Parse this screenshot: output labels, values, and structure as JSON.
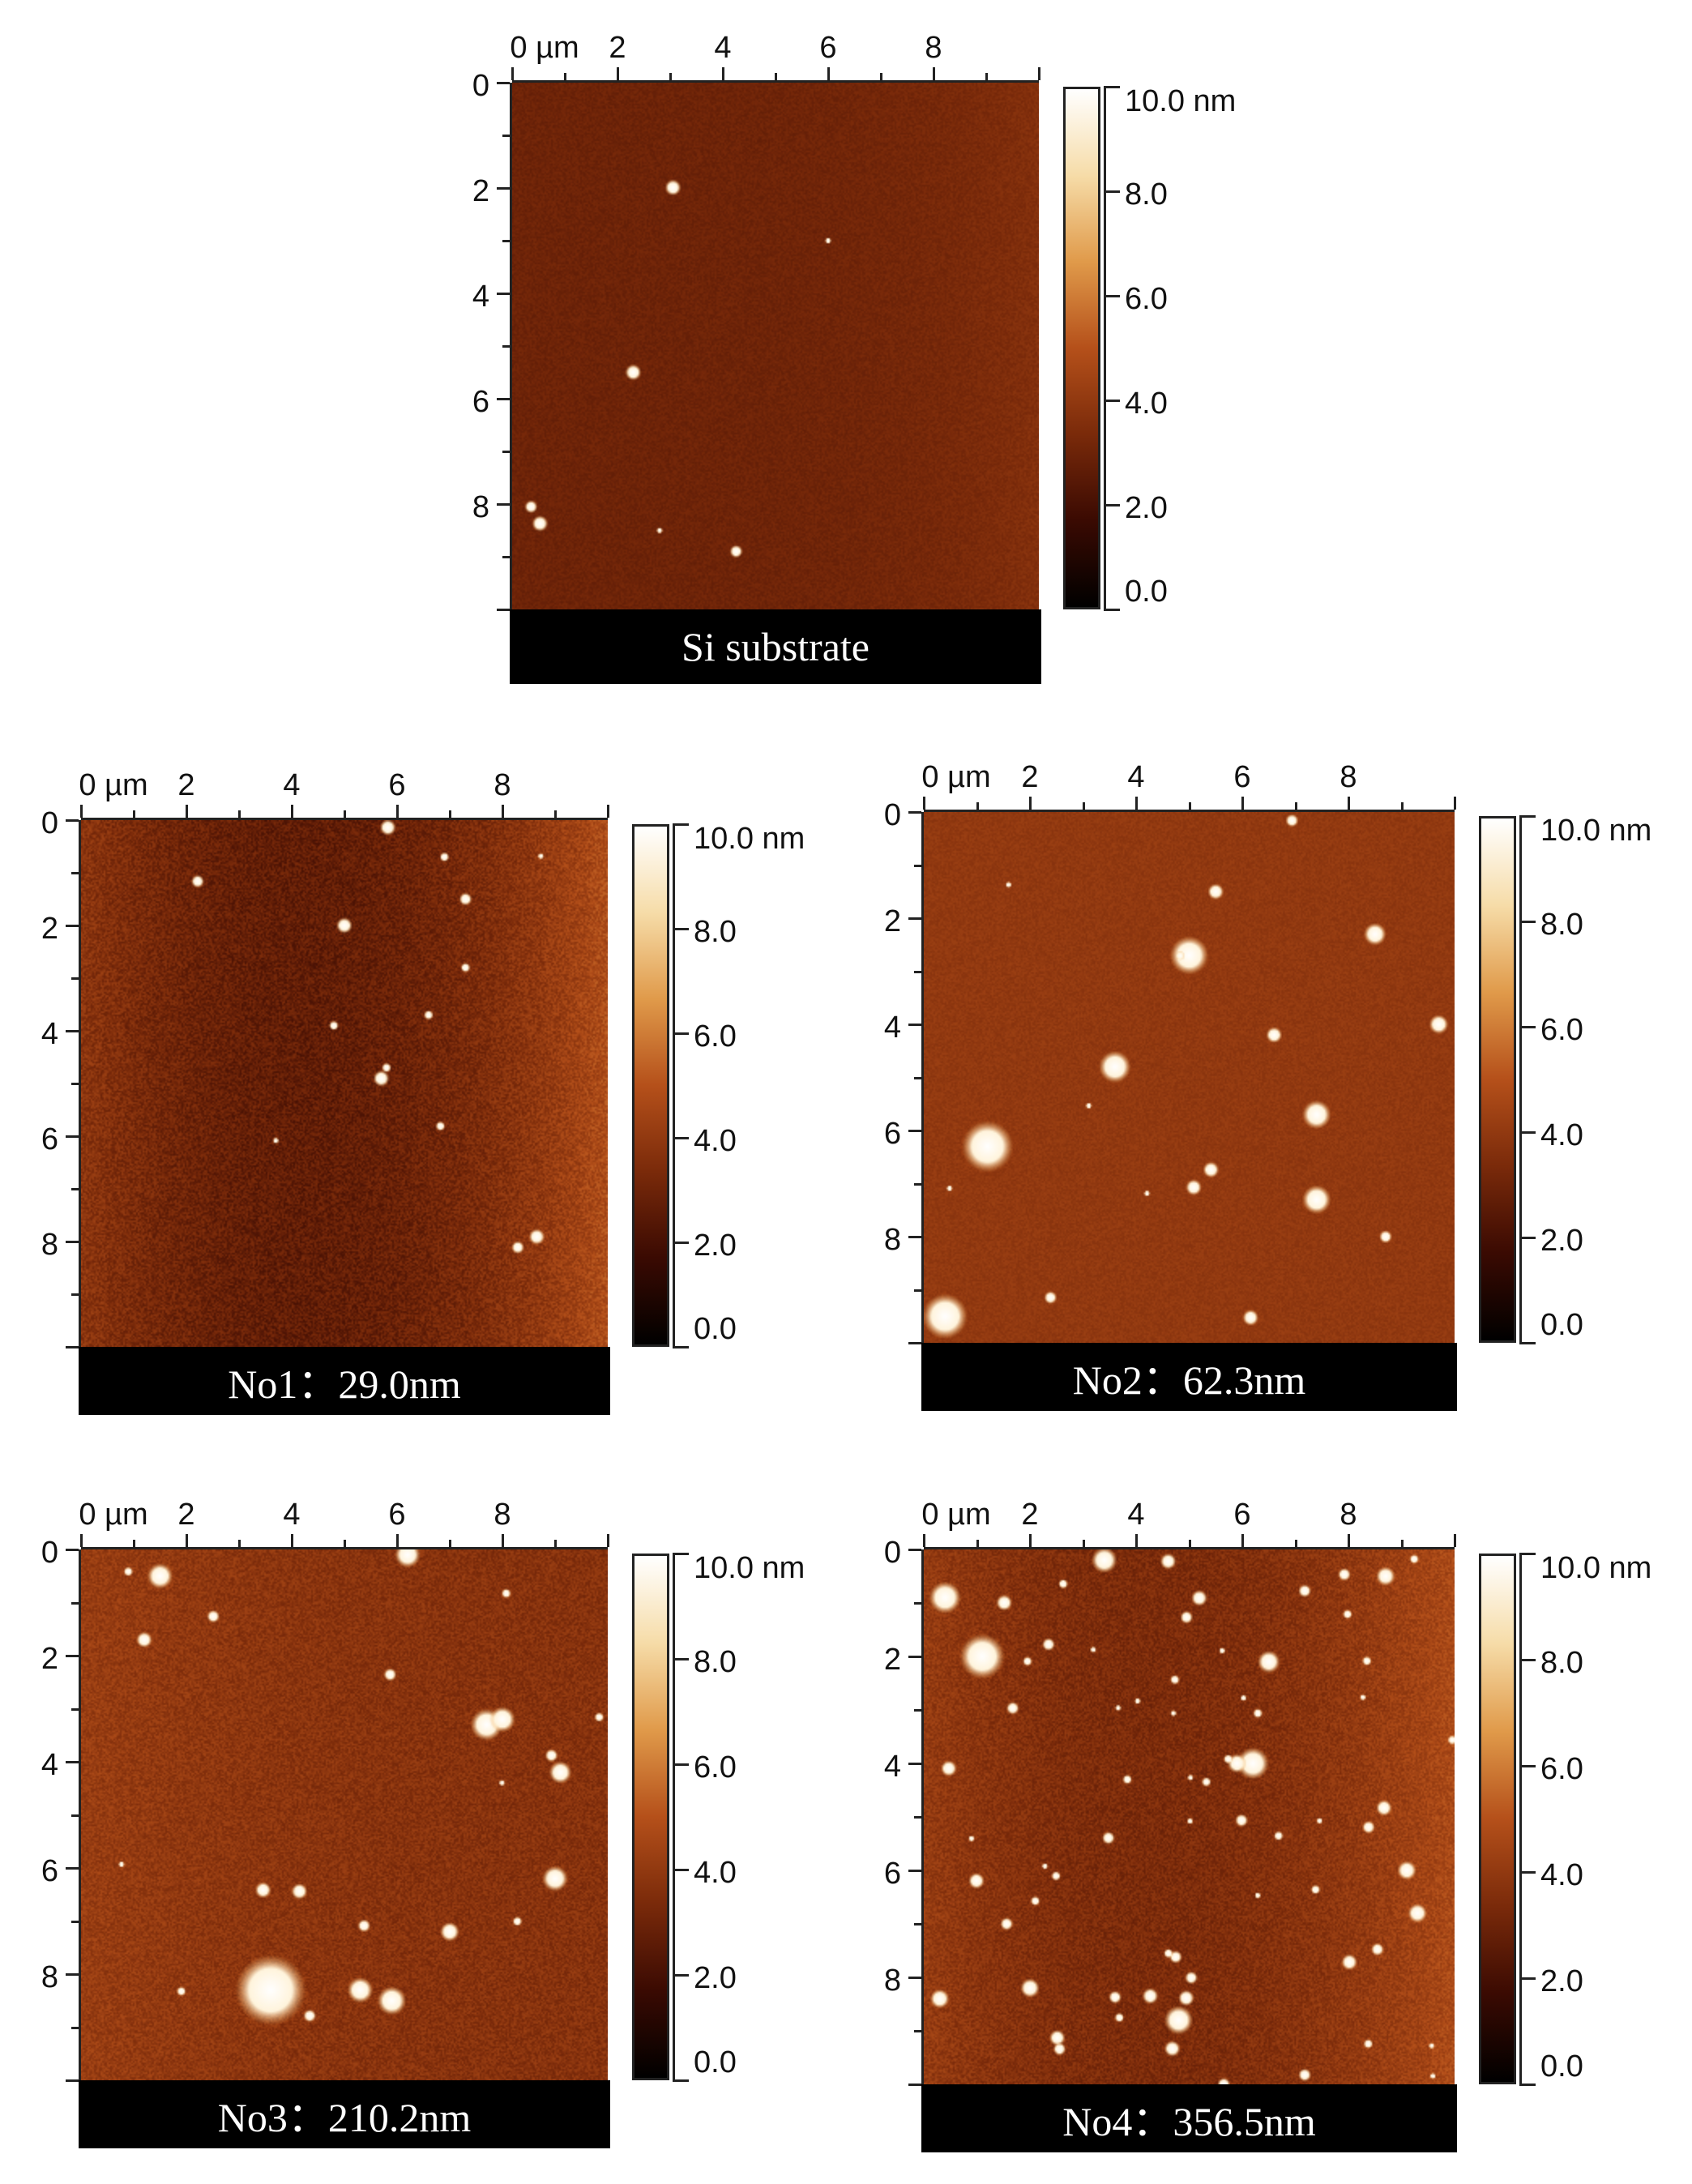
{
  "panels": [
    {
      "id": "si",
      "caption": "Si substrate",
      "x_ticks": [
        "0 µm",
        "2",
        "4",
        "6",
        "8"
      ],
      "y_ticks": [
        "0",
        "2",
        "4",
        "6",
        "8"
      ],
      "colorbar_labels": [
        "10.0 nm",
        "8.0",
        "6.0",
        "4.0",
        "2.0",
        "0.0"
      ]
    },
    {
      "id": "no1",
      "caption": "No1：29.0nm",
      "x_ticks": [
        "0 µm",
        "2",
        "4",
        "6",
        "8"
      ],
      "y_ticks": [
        "0",
        "2",
        "4",
        "6",
        "8"
      ],
      "colorbar_labels": [
        "10.0 nm",
        "8.0",
        "6.0",
        "4.0",
        "2.0",
        "0.0"
      ]
    },
    {
      "id": "no2",
      "caption": "No2：62.3nm",
      "x_ticks": [
        "0 µm",
        "2",
        "4",
        "6",
        "8"
      ],
      "y_ticks": [
        "0",
        "2",
        "4",
        "6",
        "8"
      ],
      "colorbar_labels": [
        "10.0 nm",
        "8.0",
        "6.0",
        "4.0",
        "2.0",
        "0.0"
      ]
    },
    {
      "id": "no3",
      "caption": "No3：210.2nm",
      "x_ticks": [
        "0 µm",
        "2",
        "4",
        "6",
        "8"
      ],
      "y_ticks": [
        "0",
        "2",
        "4",
        "6",
        "8"
      ],
      "colorbar_labels": [
        "10.0 nm",
        "8.0",
        "6.0",
        "4.0",
        "2.0",
        "0.0"
      ]
    },
    {
      "id": "no4",
      "caption": "No4：356.5nm",
      "x_ticks": [
        "0 µm",
        "2",
        "4",
        "6",
        "8"
      ],
      "y_ticks": [
        "0",
        "2",
        "4",
        "6",
        "8"
      ],
      "colorbar_labels": [
        "10.0 nm",
        "8.0",
        "6.0",
        "4.0",
        "2.0",
        "0.0"
      ]
    }
  ],
  "colors": {
    "colormap": [
      "#000000",
      "#3a0a02",
      "#7a2a0a",
      "#b5501a",
      "#e09a4a",
      "#f6dca8",
      "#ffffff"
    ],
    "caption_bg": "#000000",
    "caption_text": "#ffffff"
  }
}
